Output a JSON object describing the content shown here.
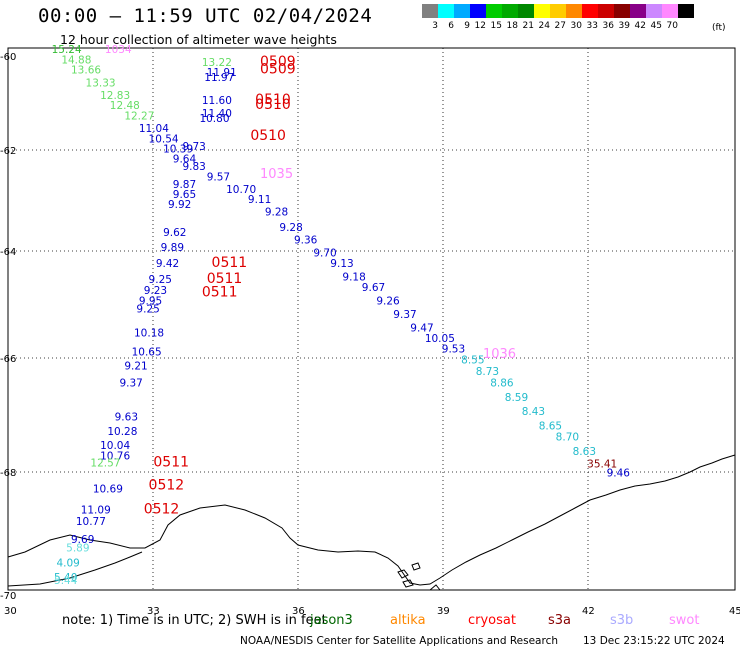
{
  "title": "00:00 – 11:59 UTC 02/04/2024",
  "subtitle": "12 hour collection of altimeter wave heights",
  "legend": {
    "colors": [
      "#808080",
      "#00ffff",
      "#00aaff",
      "#0000ff",
      "#00cc00",
      "#00aa00",
      "#008800",
      "#ffff00",
      "#ffcc00",
      "#ff8800",
      "#ff0000",
      "#cc0000",
      "#880000",
      "#880088",
      "#cc88ff",
      "#ff88ff",
      "#000000"
    ],
    "labels": [
      "3",
      "6",
      "9",
      "12",
      "15",
      "18",
      "21",
      "24",
      "27",
      "30",
      "33",
      "36",
      "39",
      "42",
      "45",
      "70"
    ],
    "unit": "(ft)"
  },
  "axes": {
    "lon_ticks": [
      "30",
      "33",
      "36",
      "39",
      "42",
      "45"
    ],
    "lat_ticks": [
      "-60",
      "-62",
      "-64",
      "-66",
      "-68",
      "-70"
    ]
  },
  "observations": [
    {
      "t": "15.24",
      "lon": 30.9,
      "lat": -60.1,
      "c": "#33bb33"
    },
    {
      "t": "1034",
      "lon": 32.0,
      "lat": -60.1,
      "c": "#ff88ff"
    },
    {
      "t": "14.88",
      "lon": 31.1,
      "lat": -60.3,
      "c": "#66dd66"
    },
    {
      "t": "13.66",
      "lon": 31.3,
      "lat": -60.5,
      "c": "#66dd66"
    },
    {
      "t": "13.33",
      "lon": 31.6,
      "lat": -60.75,
      "c": "#66dd66"
    },
    {
      "t": "12.83",
      "lon": 31.9,
      "lat": -61.0,
      "c": "#66dd66"
    },
    {
      "t": "12.48",
      "lon": 32.1,
      "lat": -61.2,
      "c": "#66dd66"
    },
    {
      "t": "12.27",
      "lon": 32.4,
      "lat": -61.4,
      "c": "#66dd66"
    },
    {
      "t": "11.04",
      "lon": 32.7,
      "lat": -61.65,
      "c": "#0000cc"
    },
    {
      "t": "10.54",
      "lon": 32.9,
      "lat": -61.85,
      "c": "#0000cc"
    },
    {
      "t": "10.39",
      "lon": 33.2,
      "lat": -62.05,
      "c": "#0000cc"
    },
    {
      "t": "9.73",
      "lon": 33.6,
      "lat": -62.0,
      "c": "#0000cc"
    },
    {
      "t": "9.64",
      "lon": 33.4,
      "lat": -62.25,
      "c": "#0000cc"
    },
    {
      "t": "9.83",
      "lon": 33.6,
      "lat": -62.4,
      "c": "#0000cc"
    },
    {
      "t": "9.57",
      "lon": 34.1,
      "lat": -62.6,
      "c": "#0000cc"
    },
    {
      "t": "9.87",
      "lon": 33.4,
      "lat": -62.75,
      "c": "#0000cc"
    },
    {
      "t": "10.70",
      "lon": 34.5,
      "lat": -62.85,
      "c": "#0000cc"
    },
    {
      "t": "9.65",
      "lon": 33.4,
      "lat": -62.95,
      "c": "#0000cc"
    },
    {
      "t": "9.92",
      "lon": 33.3,
      "lat": -63.15,
      "c": "#0000cc"
    },
    {
      "t": "9.11",
      "lon": 34.95,
      "lat": -63.05,
      "c": "#0000cc"
    },
    {
      "t": "9.28",
      "lon": 35.3,
      "lat": -63.3,
      "c": "#0000cc"
    },
    {
      "t": "9.28",
      "lon": 35.6,
      "lat": -63.6,
      "c": "#0000cc"
    },
    {
      "t": "9.62",
      "lon": 33.2,
      "lat": -63.7,
      "c": "#0000cc"
    },
    {
      "t": "9.36",
      "lon": 35.9,
      "lat": -63.85,
      "c": "#0000cc"
    },
    {
      "t": "9.89",
      "lon": 33.15,
      "lat": -64.0,
      "c": "#0000cc"
    },
    {
      "t": "9.70",
      "lon": 36.3,
      "lat": -64.1,
      "c": "#0000cc"
    },
    {
      "t": "9.42",
      "lon": 33.05,
      "lat": -64.3,
      "c": "#0000cc"
    },
    {
      "t": "9.13",
      "lon": 36.65,
      "lat": -64.3,
      "c": "#0000cc"
    },
    {
      "t": "9.18",
      "lon": 36.9,
      "lat": -64.55,
      "c": "#0000cc"
    },
    {
      "t": "9.25",
      "lon": 32.9,
      "lat": -64.6,
      "c": "#0000cc"
    },
    {
      "t": "9.67",
      "lon": 37.3,
      "lat": -64.75,
      "c": "#0000cc"
    },
    {
      "t": "9.23",
      "lon": 32.8,
      "lat": -64.8,
      "c": "#0000cc"
    },
    {
      "t": "9.26",
      "lon": 37.6,
      "lat": -65.0,
      "c": "#0000cc"
    },
    {
      "t": "9.95",
      "lon": 32.7,
      "lat": -65.0,
      "c": "#0000cc"
    },
    {
      "t": "9.25",
      "lon": 32.65,
      "lat": -65.15,
      "c": "#0000cc"
    },
    {
      "t": "9.37",
      "lon": 37.95,
      "lat": -65.25,
      "c": "#0000cc"
    },
    {
      "t": "9.47",
      "lon": 38.3,
      "lat": -65.5,
      "c": "#0000cc"
    },
    {
      "t": "10.18",
      "lon": 32.6,
      "lat": -65.6,
      "c": "#0000cc"
    },
    {
      "t": "10.05",
      "lon": 38.6,
      "lat": -65.7,
      "c": "#0000cc"
    },
    {
      "t": "9.53",
      "lon": 38.95,
      "lat": -65.9,
      "c": "#0000cc"
    },
    {
      "t": "10.65",
      "lon": 32.55,
      "lat": -65.95,
      "c": "#0000cc"
    },
    {
      "t": "9.21",
      "lon": 32.4,
      "lat": -66.2,
      "c": "#0000cc"
    },
    {
      "t": "8.55",
      "lon": 39.35,
      "lat": -66.1,
      "c": "#22bbcc"
    },
    {
      "t": "8.73",
      "lon": 39.65,
      "lat": -66.3,
      "c": "#22bbcc"
    },
    {
      "t": "9.37",
      "lon": 32.3,
      "lat": -66.5,
      "c": "#0000cc"
    },
    {
      "t": "8.86",
      "lon": 39.95,
      "lat": -66.5,
      "c": "#22bbcc"
    },
    {
      "t": "8.59",
      "lon": 40.25,
      "lat": -66.75,
      "c": "#22bbcc"
    },
    {
      "t": "8.43",
      "lon": 40.6,
      "lat": -67.0,
      "c": "#22bbcc"
    },
    {
      "t": "9.63",
      "lon": 32.2,
      "lat": -67.1,
      "c": "#0000cc"
    },
    {
      "t": "8.65",
      "lon": 40.95,
      "lat": -67.25,
      "c": "#22bbcc"
    },
    {
      "t": "10.28",
      "lon": 32.05,
      "lat": -67.35,
      "c": "#0000cc"
    },
    {
      "t": "8.70",
      "lon": 41.3,
      "lat": -67.45,
      "c": "#22bbcc"
    },
    {
      "t": "10.04",
      "lon": 31.9,
      "lat": -67.6,
      "c": "#0000cc"
    },
    {
      "t": "8.63",
      "lon": 41.65,
      "lat": -67.7,
      "c": "#22bbcc"
    },
    {
      "t": "10.76",
      "lon": 31.9,
      "lat": -67.78,
      "c": "#0000cc"
    },
    {
      "t": "12.57",
      "lon": 31.7,
      "lat": -67.9,
      "c": "#66dd66"
    },
    {
      "t": "35.41",
      "lon": 41.95,
      "lat": -67.92,
      "c": "#880000"
    },
    {
      "t": "9.46",
      "lon": 42.35,
      "lat": -68.08,
      "c": "#0000cc"
    },
    {
      "t": "10.69",
      "lon": 31.75,
      "lat": -68.35,
      "c": "#0000cc"
    },
    {
      "t": "11.09",
      "lon": 31.5,
      "lat": -68.7,
      "c": "#0000cc"
    },
    {
      "t": "10.77",
      "lon": 31.4,
      "lat": -68.9,
      "c": "#0000cc"
    },
    {
      "t": "9.69",
      "lon": 31.3,
      "lat": -69.2,
      "c": "#0000cc"
    },
    {
      "t": "5.89",
      "lon": 31.2,
      "lat": -69.35,
      "c": "#66dddd"
    },
    {
      "t": "4.09",
      "lon": 31.0,
      "lat": -69.6,
      "c": "#22bbcc"
    },
    {
      "t": "5.40",
      "lon": 30.95,
      "lat": -69.85,
      "c": "#22bbcc"
    },
    {
      "t": "5.44",
      "lon": 30.95,
      "lat": -69.9,
      "c": "#66dddd"
    },
    {
      "t": "13.22",
      "lon": 34.0,
      "lat": -60.35,
      "c": "#66dd66"
    },
    {
      "t": "11.91",
      "lon": 34.1,
      "lat": -60.55,
      "c": "#0000cc"
    },
    {
      "t": "11.97",
      "lon": 34.05,
      "lat": -60.65,
      "c": "#0000cc"
    },
    {
      "t": "11.60",
      "lon": 34.0,
      "lat": -61.1,
      "c": "#0000cc"
    },
    {
      "t": "11.40",
      "lon": 34.0,
      "lat": -61.35,
      "c": "#0000cc"
    },
    {
      "t": "10.80",
      "lon": 33.95,
      "lat": -61.45,
      "c": "#0000cc"
    }
  ],
  "times": [
    {
      "t": "0509",
      "lon": 35.2,
      "lat": -60.35
    },
    {
      "t": "0509",
      "lon": 35.2,
      "lat": -60.5
    },
    {
      "t": "0510",
      "lon": 35.1,
      "lat": -61.1
    },
    {
      "t": "0510",
      "lon": 35.1,
      "lat": -61.2
    },
    {
      "t": "0510",
      "lon": 35.0,
      "lat": -61.8
    },
    {
      "t": "0511",
      "lon": 34.2,
      "lat": -64.3
    },
    {
      "t": "0511",
      "lon": 34.1,
      "lat": -64.6
    },
    {
      "t": "0511",
      "lon": 34.0,
      "lat": -64.85
    },
    {
      "t": "0511",
      "lon": 33.0,
      "lat": -67.9
    },
    {
      "t": "0512",
      "lon": 32.9,
      "lat": -68.3
    },
    {
      "t": "0512",
      "lon": 32.8,
      "lat": -68.7
    }
  ],
  "passes": [
    {
      "t": "1035",
      "lon": 35.2,
      "lat": -62.55,
      "c": "#ff88ff"
    },
    {
      "t": "1036",
      "lon": 39.8,
      "lat": -66.0,
      "c": "#ff88ff"
    }
  ],
  "note": "note:  1) Time is in UTC;  2) SWH is in feet",
  "satellites": [
    {
      "name": "jason3",
      "color": "#006600"
    },
    {
      "name": "altika",
      "color": "#ff8800"
    },
    {
      "name": "cryosat",
      "color": "#ff0000"
    },
    {
      "name": "s3a",
      "color": "#880000"
    },
    {
      "name": "s3b",
      "color": "#aaaaff"
    },
    {
      "name": "swot",
      "color": "#ff88ff"
    }
  ],
  "credit": "NOAA/NESDIS Center for Satellite Applications and Research",
  "timestamp": "13 Dec 23:15:22 UTC 2024"
}
